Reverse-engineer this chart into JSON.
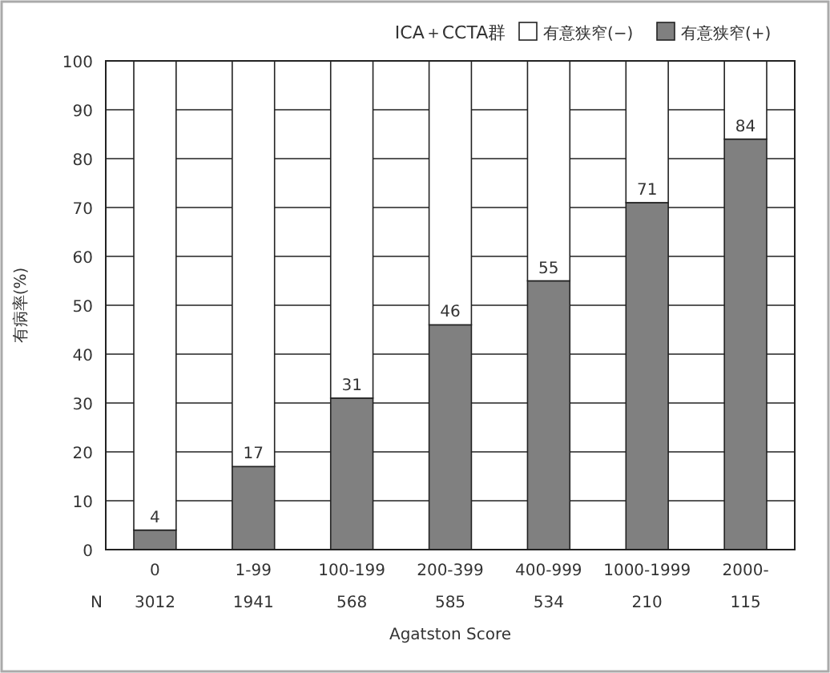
{
  "chart_data": {
    "type": "bar",
    "title": "ICA＋CCTA群",
    "xlabel": "Agatston Score",
    "ylabel": "有病率(%)",
    "categories": [
      "0",
      "1-99",
      "100-199",
      "200-399",
      "400-999",
      "1000-1999",
      "2000-"
    ],
    "series": [
      {
        "name": "有意狭窄(+)",
        "color": "#808080",
        "values": [
          4,
          17,
          31,
          46,
          55,
          71,
          84
        ],
        "value_labels": [
          "4",
          "17",
          "31",
          "46",
          "55",
          "71",
          "84"
        ]
      },
      {
        "name": "有意狭窄(−)",
        "color": "#ffffff",
        "values": [
          96,
          83,
          69,
          54,
          45,
          29,
          16
        ]
      }
    ],
    "stacked": true,
    "ylim": [
      0,
      100
    ],
    "yticks": [
      0,
      10,
      20,
      30,
      40,
      50,
      60,
      70,
      80,
      90,
      100
    ],
    "grid": "y",
    "legend": "top right",
    "annotations": [
      "N",
      "3012",
      "1941",
      "568",
      "585",
      "534",
      "210",
      "115"
    ]
  }
}
